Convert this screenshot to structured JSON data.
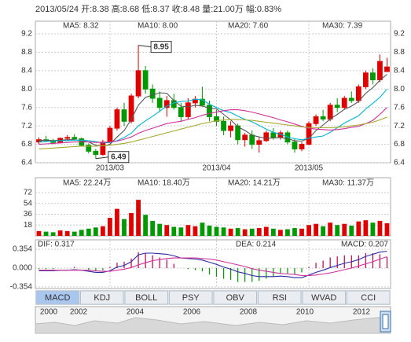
{
  "chart_data": {
    "type": "candlestick",
    "header": "2013/05/24 开:8.38 高:8.68 低:8.37 收:8.48 量:21.00万 幅:0.83%",
    "up_color": "#e00000",
    "down_color": "#009900",
    "ylim": [
      6.4,
      9.2
    ],
    "yticks": [
      6.4,
      6.8,
      7.2,
      7.6,
      {
        "value": 8,
        "label": "8.0"
      },
      8.4,
      8.8,
      9.2
    ],
    "xticks": [
      {
        "value": 10,
        "label": "2013/03"
      },
      {
        "value": 25,
        "label": "2013/04"
      },
      {
        "value": 38,
        "label": "2013/05"
      }
    ],
    "annotations": [
      8.95,
      6.49
    ],
    "candles": [
      [
        6.85,
        6.95,
        6.8,
        6.9
      ],
      [
        6.9,
        6.98,
        6.85,
        6.88
      ],
      [
        6.88,
        6.92,
        6.8,
        6.84
      ],
      [
        6.84,
        6.95,
        6.82,
        6.93
      ],
      [
        6.93,
        7.0,
        6.88,
        6.95
      ],
      [
        6.95,
        7.02,
        6.9,
        6.92
      ],
      [
        6.92,
        6.95,
        6.75,
        6.78
      ],
      [
        6.78,
        6.82,
        6.6,
        6.65
      ],
      [
        6.65,
        6.7,
        6.49,
        6.58
      ],
      [
        6.58,
        6.9,
        6.55,
        6.85
      ],
      [
        6.85,
        7.2,
        6.82,
        7.15
      ],
      [
        7.15,
        7.6,
        7.1,
        7.55
      ],
      [
        7.55,
        7.7,
        7.2,
        7.3
      ],
      [
        7.3,
        7.9,
        7.25,
        7.85
      ],
      [
        7.85,
        8.95,
        7.8,
        8.4
      ],
      [
        8.4,
        8.5,
        7.9,
        8.0
      ],
      [
        8.0,
        8.1,
        7.7,
        7.8
      ],
      [
        7.8,
        7.95,
        7.5,
        7.6
      ],
      [
        7.6,
        7.85,
        7.4,
        7.75
      ],
      [
        7.75,
        7.9,
        7.55,
        7.6
      ],
      [
        7.6,
        7.7,
        7.3,
        7.4
      ],
      [
        7.4,
        7.8,
        7.35,
        7.7
      ],
      [
        7.7,
        7.85,
        7.6,
        7.78
      ],
      [
        7.78,
        8.05,
        7.62,
        7.65
      ],
      [
        7.65,
        7.75,
        7.3,
        7.4
      ],
      [
        7.4,
        7.55,
        7.2,
        7.3
      ],
      [
        7.3,
        7.4,
        7.0,
        7.1
      ],
      [
        7.1,
        7.3,
        6.95,
        7.2
      ],
      [
        7.2,
        7.25,
        6.8,
        6.9
      ],
      [
        6.9,
        7.05,
        6.75,
        7.0
      ],
      [
        7.0,
        7.1,
        6.7,
        6.8
      ],
      [
        6.8,
        6.95,
        6.62,
        6.88
      ],
      [
        6.88,
        7.1,
        6.85,
        7.05
      ],
      [
        7.05,
        7.15,
        6.9,
        6.95
      ],
      [
        6.95,
        7.1,
        6.9,
        7.05
      ],
      [
        7.05,
        7.1,
        6.8,
        6.85
      ],
      [
        6.85,
        6.92,
        6.62,
        6.7
      ],
      [
        6.7,
        6.85,
        6.65,
        6.8
      ],
      [
        6.8,
        7.3,
        6.78,
        7.25
      ],
      [
        7.25,
        7.45,
        7.2,
        7.4
      ],
      [
        7.4,
        7.55,
        7.3,
        7.35
      ],
      [
        7.35,
        7.7,
        7.3,
        7.65
      ],
      [
        7.65,
        7.8,
        7.5,
        7.6
      ],
      [
        7.6,
        7.85,
        7.55,
        7.8
      ],
      [
        7.8,
        7.95,
        7.7,
        7.75
      ],
      [
        7.75,
        8.1,
        7.7,
        8.05
      ],
      [
        8.05,
        8.4,
        8.0,
        8.35
      ],
      [
        8.35,
        8.45,
        8.1,
        8.2
      ],
      [
        8.2,
        8.75,
        8.15,
        8.6
      ],
      [
        8.38,
        8.68,
        8.37,
        8.48
      ]
    ],
    "series": [
      {
        "name": "MA5: 8.32",
        "color": "#555555",
        "values": [
          6.88,
          6.89,
          6.88,
          6.89,
          6.9,
          6.9,
          6.88,
          6.85,
          6.78,
          6.76,
          6.8,
          6.96,
          7.1,
          7.34,
          7.65,
          7.82,
          7.87,
          7.92,
          7.91,
          7.75,
          7.63,
          7.61,
          7.65,
          7.63,
          7.59,
          7.57,
          7.45,
          7.33,
          7.18,
          7.1,
          7.0,
          6.96,
          6.93,
          6.94,
          6.95,
          6.92,
          6.88,
          6.87,
          6.93,
          7.1,
          7.22,
          7.35,
          7.45,
          7.56,
          7.63,
          7.73,
          7.91,
          8.03,
          8.19,
          8.32
        ]
      },
      {
        "name": "MA10: 8.00",
        "color": "#00b5d0",
        "values": [
          6.85,
          6.86,
          6.87,
          6.88,
          6.88,
          6.89,
          6.89,
          6.88,
          6.86,
          6.83,
          6.84,
          6.88,
          6.95,
          7.04,
          7.2,
          7.31,
          7.41,
          7.52,
          7.63,
          7.7,
          7.73,
          7.74,
          7.78,
          7.77,
          7.67,
          7.6,
          7.53,
          7.49,
          7.41,
          7.34,
          7.29,
          7.21,
          7.13,
          7.06,
          7.02,
          6.96,
          6.92,
          6.9,
          6.93,
          6.96,
          6.98,
          7.06,
          7.16,
          7.26,
          7.34,
          7.42,
          7.57,
          7.69,
          7.82,
          8.0
        ]
      },
      {
        "name": "MA20: 7.60",
        "color": "#d0309a",
        "values": [
          6.8,
          6.81,
          6.82,
          6.83,
          6.84,
          6.85,
          6.85,
          6.85,
          6.84,
          6.84,
          6.85,
          6.87,
          6.91,
          6.96,
          7.04,
          7.1,
          7.15,
          7.2,
          7.25,
          7.28,
          7.3,
          7.34,
          7.38,
          7.43,
          7.47,
          7.5,
          7.53,
          7.55,
          7.55,
          7.53,
          7.5,
          7.46,
          7.42,
          7.38,
          7.33,
          7.29,
          7.24,
          7.19,
          7.15,
          7.13,
          7.12,
          7.11,
          7.12,
          7.14,
          7.17,
          7.19,
          7.25,
          7.32,
          7.45,
          7.6
        ]
      },
      {
        "name": "MA30: 7.39",
        "color": "#a8a830",
        "values": [
          6.7,
          6.71,
          6.72,
          6.73,
          6.74,
          6.75,
          6.76,
          6.76,
          6.76,
          6.77,
          6.78,
          6.8,
          6.82,
          6.85,
          6.89,
          6.93,
          6.97,
          7.01,
          7.05,
          7.09,
          7.13,
          7.17,
          7.21,
          7.25,
          7.28,
          7.31,
          7.33,
          7.34,
          7.34,
          7.33,
          7.32,
          7.3,
          7.28,
          7.26,
          7.24,
          7.22,
          7.2,
          7.18,
          7.17,
          7.16,
          7.16,
          7.16,
          7.17,
          7.18,
          7.2,
          7.22,
          7.25,
          7.28,
          7.33,
          7.39
        ]
      }
    ],
    "volume": {
      "ylim": [
        0,
        72
      ],
      "yticks": [
        18,
        36,
        54,
        72
      ],
      "legend": [
        {
          "name": "MA5: 22.24万",
          "color": "#555555"
        },
        {
          "name": "MA10: 18.40万",
          "color": "#00b5d0"
        },
        {
          "name": "MA20: 14.21万",
          "color": "#d0309a"
        },
        {
          "name": "MA30: 11.37万",
          "color": "#a8a830"
        }
      ],
      "values": [
        8,
        7,
        6,
        9,
        8,
        7,
        10,
        12,
        14,
        16,
        30,
        45,
        28,
        38,
        60,
        35,
        25,
        20,
        18,
        15,
        14,
        18,
        16,
        22,
        17,
        15,
        14,
        12,
        13,
        11,
        12,
        13,
        15,
        12,
        10,
        11,
        13,
        12,
        18,
        20,
        16,
        22,
        18,
        20,
        17,
        24,
        26,
        22,
        25,
        21
      ]
    },
    "macd": {
      "ylim": [
        -0.354,
        0.354
      ],
      "yticks": [
        -0.354,
        {
          "value": 0,
          "label": "0.000"
        },
        0.354
      ],
      "bar_name": "MACD: 0.207",
      "bars": [
        -0.02,
        -0.02,
        -0.02,
        0,
        0,
        0.02,
        0,
        -0.04,
        -0.06,
        -0.04,
        0.02,
        0.1,
        0.12,
        0.18,
        0.3,
        0.28,
        0.24,
        0.2,
        0.16,
        0.08,
        0,
        -0.02,
        -0.04,
        -0.06,
        -0.12,
        -0.16,
        -0.2,
        -0.22,
        -0.26,
        -0.26,
        -0.26,
        -0.24,
        -0.2,
        -0.16,
        -0.1,
        -0.1,
        -0.12,
        -0.08,
        0.02,
        0.1,
        0.14,
        0.2,
        0.22,
        0.24,
        0.24,
        0.24,
        0.28,
        0.28,
        0.26,
        0.207
      ],
      "series": [
        {
          "name": "DIF: 0.317",
          "color": "#2a2aa0",
          "values": [
            -0.05,
            -0.05,
            -0.05,
            -0.04,
            -0.04,
            -0.03,
            -0.04,
            -0.06,
            -0.08,
            -0.08,
            -0.05,
            0.02,
            0.05,
            0.12,
            0.25,
            0.28,
            0.28,
            0.27,
            0.26,
            0.23,
            0.19,
            0.18,
            0.17,
            0.15,
            0.11,
            0.07,
            0.02,
            -0.02,
            -0.07,
            -0.1,
            -0.14,
            -0.16,
            -0.16,
            -0.16,
            -0.15,
            -0.16,
            -0.18,
            -0.18,
            -0.13,
            -0.08,
            -0.04,
            0.01,
            0.05,
            0.09,
            0.12,
            0.16,
            0.22,
            0.26,
            0.3,
            0.317
          ]
        },
        {
          "name": "DEA: 0.214",
          "color": "#d0309a",
          "values": [
            -0.04,
            -0.04,
            -0.04,
            -0.04,
            -0.04,
            -0.04,
            -0.04,
            -0.04,
            -0.05,
            -0.06,
            -0.06,
            -0.04,
            -0.02,
            0.01,
            0.06,
            0.1,
            0.14,
            0.16,
            0.18,
            0.19,
            0.19,
            0.19,
            0.19,
            0.18,
            0.17,
            0.15,
            0.12,
            0.09,
            0.06,
            0.03,
            -0.01,
            -0.04,
            -0.06,
            -0.08,
            -0.1,
            -0.11,
            -0.12,
            -0.14,
            -0.14,
            -0.13,
            -0.11,
            -0.09,
            -0.06,
            -0.03,
            0.0,
            0.04,
            0.08,
            0.12,
            0.17,
            0.214
          ]
        }
      ]
    },
    "tabs": [
      "MACD",
      "KDJ",
      "BOLL",
      "PSY",
      "OBV",
      "RSI",
      "WVAD",
      "CCI"
    ],
    "years": [
      "2000",
      "2002",
      "2004",
      "2006",
      "2008",
      "2010",
      "2012"
    ]
  }
}
